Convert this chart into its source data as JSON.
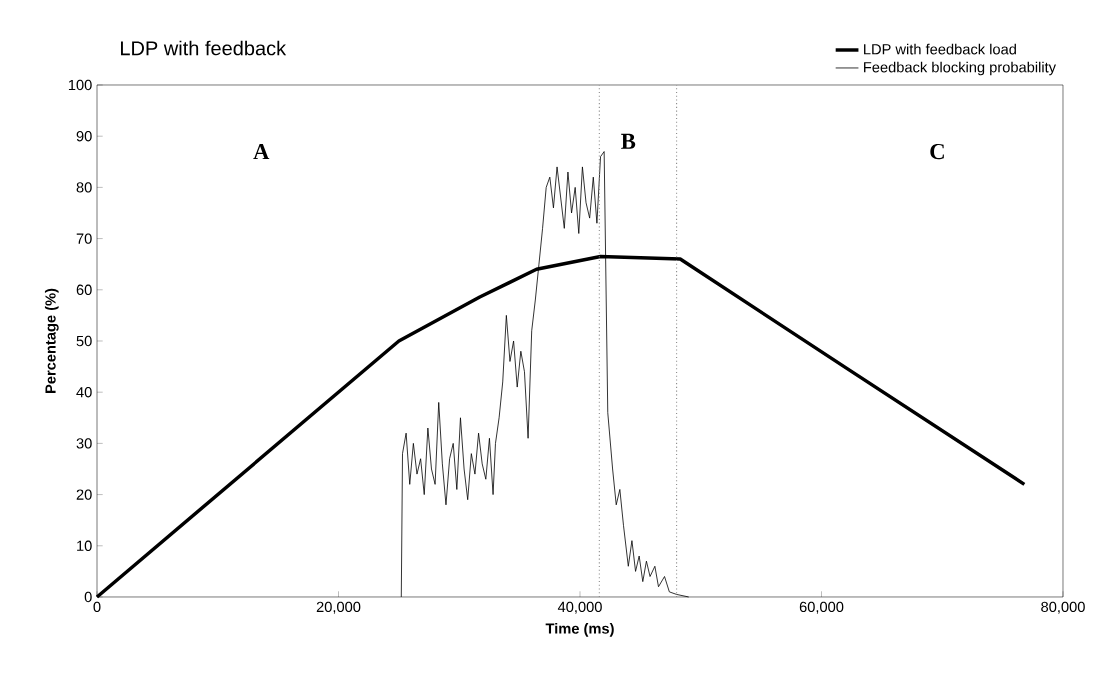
{
  "chart_data": {
    "type": "line",
    "title": "LDP with feedback",
    "xlabel": "Time (ms)",
    "ylabel": "Percentage (%)",
    "xlim": [
      0,
      80000
    ],
    "ylim": [
      0,
      100
    ],
    "xticks": [
      0,
      {
        "value": 20000,
        "label": "20,000"
      },
      {
        "value": 40000,
        "label": "40,000"
      },
      {
        "value": 60000,
        "label": "60,000"
      },
      {
        "value": 80000,
        "label": "80,000"
      }
    ],
    "yticks": [
      0,
      10,
      20,
      30,
      40,
      50,
      60,
      70,
      80,
      90,
      100
    ],
    "grid": false,
    "legend": "top right",
    "marker": "none",
    "annotations": [
      "A",
      "B",
      "C"
    ],
    "ref_lines": [
      {
        "axis": "x",
        "value": 41600,
        "color": "#888888",
        "line_style": "dotted"
      },
      {
        "axis": "x",
        "value": 48000,
        "color": "#888888",
        "line_style": "dotted"
      }
    ],
    "series": [
      {
        "name": "LDP with feedback load",
        "color": "#000000",
        "line_style": "solid",
        "x": [
          0,
          25000,
          31700,
          36400,
          41700,
          48300,
          62000,
          76800
        ],
        "values": [
          0,
          50,
          58.6,
          64,
          66.5,
          66,
          44.8,
          22
        ]
      },
      {
        "name": "Feedback blocking probability",
        "color": "#000000",
        "line_style": "solid",
        "x": [
          25200,
          25300,
          25600,
          25900,
          26200,
          26500,
          26800,
          27100,
          27400,
          27700,
          28000,
          28300,
          28600,
          28900,
          29200,
          29500,
          29800,
          30100,
          30400,
          30700,
          31000,
          31300,
          31600,
          31900,
          32200,
          32500,
          32800,
          33000,
          33300,
          33600,
          33900,
          34200,
          34500,
          34800,
          35100,
          35400,
          35700,
          36000,
          36300,
          36600,
          36900,
          37200,
          37500,
          37800,
          38100,
          38400,
          38700,
          39000,
          39300,
          39600,
          39900,
          40200,
          40500,
          40800,
          41100,
          41400,
          41700,
          42000,
          42300,
          42700,
          43000,
          43300,
          43600,
          44000,
          44300,
          44600,
          44900,
          45200,
          45500,
          45800,
          46200,
          46500,
          47000,
          47400,
          48000,
          49000
        ],
        "values": [
          0,
          28,
          32,
          22,
          30,
          24,
          27,
          20,
          33,
          25,
          22,
          38,
          26,
          18,
          27,
          30,
          21,
          35,
          25,
          19,
          28,
          24,
          32,
          26,
          23,
          31,
          20,
          30,
          35,
          42,
          55,
          46,
          50,
          41,
          48,
          44,
          31,
          52,
          58,
          65,
          72,
          80,
          82,
          76,
          84,
          78,
          72,
          83,
          75,
          80,
          71,
          84,
          77,
          74,
          82,
          73,
          86,
          87,
          36,
          25,
          18,
          21,
          14,
          6,
          11,
          5,
          8,
          3,
          7,
          4,
          6,
          2,
          4,
          1,
          0.5,
          0
        ]
      }
    ]
  }
}
